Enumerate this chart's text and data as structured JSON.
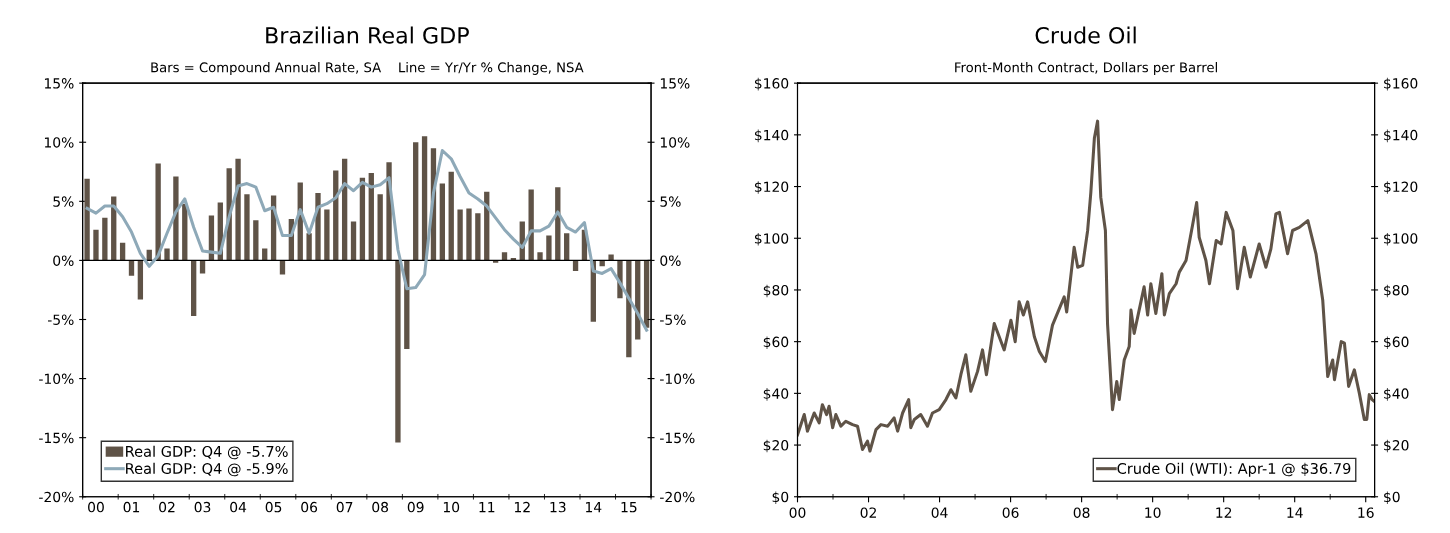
{
  "chart_data": [
    {
      "type": "bar",
      "title": "Brazilian Real GDP",
      "subtitle": "Bars = Compound Annual Rate, SA    Line = Yr/Yr % Change, NSA",
      "categories": [
        null,
        "00",
        null,
        null,
        null,
        "01",
        null,
        null,
        null,
        "02",
        null,
        null,
        null,
        "03",
        null,
        null,
        null,
        "04",
        null,
        null,
        null,
        "05",
        null,
        null,
        null,
        "06",
        null,
        null,
        null,
        "07",
        null,
        null,
        null,
        "08",
        null,
        null,
        null,
        "09",
        null,
        null,
        null,
        "10",
        null,
        null,
        null,
        "11",
        null,
        null,
        null,
        "12",
        null,
        null,
        null,
        "13",
        null,
        null,
        null,
        "14",
        null,
        null,
        null,
        "15",
        null,
        null
      ],
      "series": [
        {
          "name": "Real GDP: Q4 @ -5.7%",
          "type": "bar",
          "color": "#5f5347",
          "values": [
            6.9,
            2.6,
            3.6,
            5.4,
            1.5,
            -1.3,
            -3.3,
            0.9,
            8.2,
            1.0,
            7.1,
            4.8,
            -4.7,
            -1.1,
            3.8,
            4.9,
            7.8,
            8.6,
            5.6,
            3.4,
            1.0,
            5.5,
            -1.2,
            3.5,
            6.6,
            2.3,
            5.7,
            4.3,
            7.6,
            8.6,
            3.3,
            7.0,
            7.4,
            5.6,
            8.3,
            -15.4,
            -7.5,
            10.0,
            10.5,
            9.5,
            6.5,
            7.5,
            4.3,
            4.4,
            4.0,
            5.8,
            -0.2,
            0.7,
            0.2,
            3.3,
            6.0,
            0.7,
            2.1,
            6.2,
            2.3,
            -0.9,
            2.6,
            -5.2,
            -0.5,
            0.5,
            -3.2,
            -8.2,
            -6.7,
            -5.7
          ]
        },
        {
          "name": "Real GDP: Q4 @ -5.9%",
          "type": "line",
          "color": "#8ea9b8",
          "values": [
            4.4,
            4.0,
            4.6,
            4.6,
            3.7,
            2.4,
            0.6,
            -0.5,
            0.4,
            2.3,
            4.1,
            5.2,
            2.8,
            0.8,
            0.7,
            0.6,
            3.7,
            6.3,
            6.5,
            6.2,
            4.2,
            4.5,
            2.1,
            2.1,
            4.3,
            2.3,
            4.5,
            4.8,
            5.3,
            6.5,
            5.9,
            6.6,
            6.2,
            6.4,
            7.0,
            0.9,
            -2.4,
            -2.3,
            -1.2,
            5.7,
            9.3,
            8.6,
            7.1,
            5.7,
            5.2,
            4.6,
            3.6,
            2.6,
            1.8,
            1.1,
            2.5,
            2.5,
            2.9,
            4.1,
            2.8,
            2.4,
            3.2,
            -0.9,
            -1.1,
            -0.7,
            -1.9,
            -3.2,
            -4.5,
            -5.9
          ]
        }
      ],
      "ylim": [
        -20,
        15
      ],
      "yticks": [
        {
          "value": -20,
          "label": "-20%"
        },
        {
          "value": -15,
          "label": "-15%"
        },
        {
          "value": -10,
          "label": "-10%"
        },
        {
          "value": -5,
          "label": "-5%"
        },
        {
          "value": 0,
          "label": "0%"
        },
        {
          "value": 5,
          "label": "5%"
        },
        {
          "value": 10,
          "label": "10%"
        },
        {
          "value": 15,
          "label": "15%"
        }
      ],
      "y2lim": [
        -20,
        15
      ],
      "y2ticks": [
        {
          "value": -20,
          "label": "-20%"
        },
        {
          "value": -15,
          "label": "-15%"
        },
        {
          "value": -10,
          "label": "-10%"
        },
        {
          "value": -5,
          "label": "-5%"
        },
        {
          "value": 0,
          "label": "0%"
        },
        {
          "value": 5,
          "label": "5%"
        },
        {
          "value": 10,
          "label": "10%"
        },
        {
          "value": 15,
          "label": "15%"
        }
      ],
      "ref_lines": [
        {
          "axis": "y",
          "value": 0,
          "color": "#000000"
        }
      ],
      "legend": "bottom left",
      "grid": false
    },
    {
      "type": "line",
      "title": "Crude Oil",
      "subtitle": "Front-Month Contract, Dollars per Barrel",
      "series": [
        {
          "name": "Crude Oil (WTI): Apr-1 @ $36.79",
          "color": "#5f5347",
          "x": [
            2000.0,
            2000.19,
            2000.28,
            2000.47,
            2000.61,
            2000.7,
            2000.82,
            2000.89,
            2000.99,
            2001.08,
            2001.22,
            2001.36,
            2001.55,
            2001.69,
            2001.83,
            2001.97,
            2002.04,
            2002.21,
            2002.35,
            2002.54,
            2002.72,
            2002.82,
            2002.96,
            2003.13,
            2003.19,
            2003.29,
            2003.47,
            2003.66,
            2003.8,
            2003.99,
            2004.18,
            2004.32,
            2004.46,
            2004.6,
            2004.74,
            2004.88,
            2005.07,
            2005.21,
            2005.32,
            2005.54,
            2005.82,
            2006.01,
            2006.13,
            2006.24,
            2006.36,
            2006.48,
            2006.67,
            2006.81,
            2006.98,
            2007.18,
            2007.51,
            2007.58,
            2007.79,
            2007.89,
            2008.03,
            2008.17,
            2008.26,
            2008.36,
            2008.45,
            2008.54,
            2008.67,
            2008.73,
            2008.87,
            2008.99,
            2009.06,
            2009.2,
            2009.34,
            2009.39,
            2009.48,
            2009.62,
            2009.76,
            2009.86,
            2009.95,
            2010.09,
            2010.26,
            2010.33,
            2010.47,
            2010.66,
            2010.75,
            2010.94,
            2011.13,
            2011.24,
            2011.31,
            2011.5,
            2011.6,
            2011.79,
            2011.93,
            2012.07,
            2012.26,
            2012.39,
            2012.58,
            2012.75,
            2013.0,
            2013.19,
            2013.33,
            2013.47,
            2013.57,
            2013.8,
            2013.94,
            2014.13,
            2014.37,
            2014.6,
            2014.79,
            2014.93,
            2015.07,
            2015.12,
            2015.31,
            2015.4,
            2015.52,
            2015.68,
            2015.82,
            2015.96,
            2016.03,
            2016.1,
            2016.18,
            2016.25
          ],
          "values": [
            24,
            31.8,
            25.4,
            32.4,
            28.6,
            35.6,
            31.8,
            35,
            26.7,
            31.8,
            27.3,
            29.2,
            27.9,
            27.3,
            18.3,
            21.5,
            17.7,
            26,
            27.9,
            27.3,
            30.5,
            25.4,
            32.4,
            37.6,
            26.7,
            29.9,
            31.8,
            27.3,
            32.4,
            33.7,
            37.6,
            41.4,
            38.2,
            47.2,
            54.9,
            40.8,
            48.5,
            56.8,
            47.2,
            67,
            56.8,
            68.3,
            60,
            75.4,
            70.3,
            75.4,
            61.9,
            56.2,
            52.3,
            66.4,
            77.3,
            71.5,
            96.5,
            88.8,
            89.5,
            103,
            117.7,
            138.8,
            145.3,
            115.8,
            103,
            67,
            33.7,
            44.6,
            37.6,
            52.9,
            58.1,
            72.2,
            63.2,
            72.2,
            81.2,
            70.3,
            82.4,
            70.9,
            86.3,
            70.3,
            78.6,
            82.4,
            86.9,
            91.4,
            105.5,
            113.8,
            100.4,
            91.4,
            82.4,
            99.1,
            97.8,
            110,
            103,
            80.5,
            96.5,
            85,
            97.8,
            88.8,
            95.9,
            109.4,
            110,
            94,
            103,
            104.2,
            106.8,
            94,
            76,
            46.5,
            52.9,
            45.3,
            60,
            59.4,
            42.7,
            49.1,
            40.1,
            29.9,
            29.9,
            39.5,
            37.6,
            36.8
          ]
        }
      ],
      "xlim": [
        2000,
        2016.25
      ],
      "xticks": [
        {
          "value": 2000,
          "label": "00"
        },
        {
          "value": 2001,
          "label": null
        },
        {
          "value": 2002,
          "label": "02"
        },
        {
          "value": 2003,
          "label": null
        },
        {
          "value": 2004,
          "label": "04"
        },
        {
          "value": 2005,
          "label": null
        },
        {
          "value": 2006,
          "label": "06"
        },
        {
          "value": 2007,
          "label": null
        },
        {
          "value": 2008,
          "label": "08"
        },
        {
          "value": 2009,
          "label": null
        },
        {
          "value": 2010,
          "label": "10"
        },
        {
          "value": 2011,
          "label": null
        },
        {
          "value": 2012,
          "label": "12"
        },
        {
          "value": 2013,
          "label": null
        },
        {
          "value": 2014,
          "label": "14"
        },
        {
          "value": 2015,
          "label": null
        },
        {
          "value": 2016,
          "label": "16"
        }
      ],
      "ylim": [
        0,
        160
      ],
      "yticks": [
        {
          "value": 0,
          "label": "$0"
        },
        {
          "value": 20,
          "label": "$20"
        },
        {
          "value": 40,
          "label": "$40"
        },
        {
          "value": 60,
          "label": "$60"
        },
        {
          "value": 80,
          "label": "$80"
        },
        {
          "value": 100,
          "label": "$100"
        },
        {
          "value": 120,
          "label": "$120"
        },
        {
          "value": 140,
          "label": "$140"
        },
        {
          "value": 160,
          "label": "$160"
        }
      ],
      "y2lim": [
        0,
        160
      ],
      "y2ticks": [
        {
          "value": 0,
          "label": "$0"
        },
        {
          "value": 20,
          "label": "$20"
        },
        {
          "value": 40,
          "label": "$40"
        },
        {
          "value": 60,
          "label": "$60"
        },
        {
          "value": 80,
          "label": "$80"
        },
        {
          "value": 100,
          "label": "$100"
        },
        {
          "value": 120,
          "label": "$120"
        },
        {
          "value": 140,
          "label": "$140"
        },
        {
          "value": 160,
          "label": "$160"
        }
      ],
      "legend": "bottom right",
      "grid": false
    }
  ]
}
